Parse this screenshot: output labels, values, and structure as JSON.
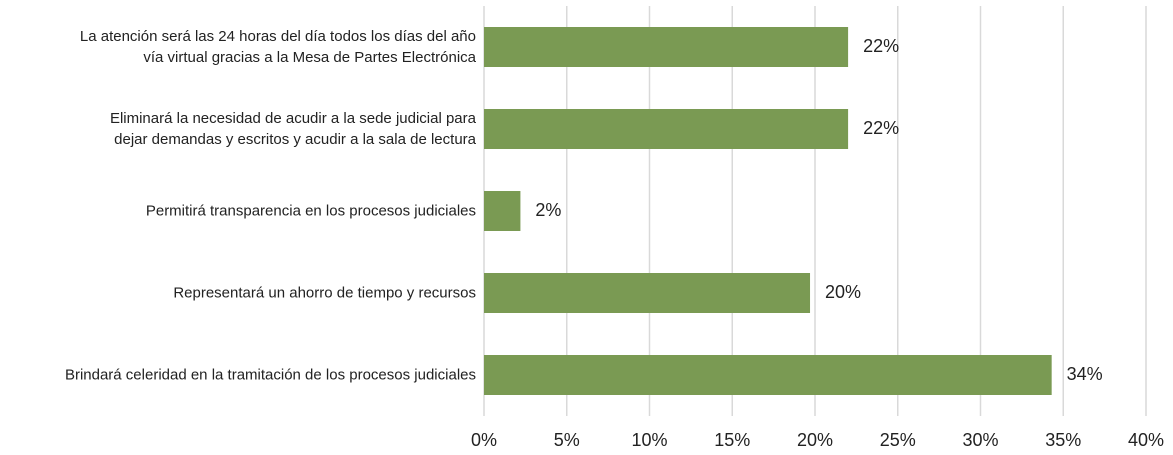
{
  "chart_data": {
    "type": "bar",
    "orientation": "horizontal",
    "categories": [
      "La atención será las 24 horas del día todos los días del año\nvía virtual gracias a la Mesa de Partes Electrónica",
      "Eliminará la necesidad de acudir a la sede judicial para\ndejar demandas y escritos y acudir a la sala de lectura",
      "Permitirá transparencia en los procesos judiciales",
      "Representará un ahorro de tiempo y recursos",
      "Brindará celeridad en la tramitación de los procesos judiciales"
    ],
    "values": [
      22,
      22,
      2.2,
      19.7,
      34.3
    ],
    "value_labels": [
      "22%",
      "22%",
      "2%",
      "20%",
      "34%"
    ],
    "color": "#7a9a53",
    "xlim": [
      0,
      40
    ],
    "xticks": [
      {
        "value": 0,
        "label": "0%"
      },
      {
        "value": 5,
        "label": "5%"
      },
      {
        "value": 10,
        "label": "10%"
      },
      {
        "value": 15,
        "label": "15%"
      },
      {
        "value": 20,
        "label": "20%"
      },
      {
        "value": 25,
        "label": "25%"
      },
      {
        "value": 30,
        "label": "30%"
      },
      {
        "value": 35,
        "label": "35%"
      },
      {
        "value": 40,
        "label": "40%"
      }
    ],
    "grid": true
  }
}
